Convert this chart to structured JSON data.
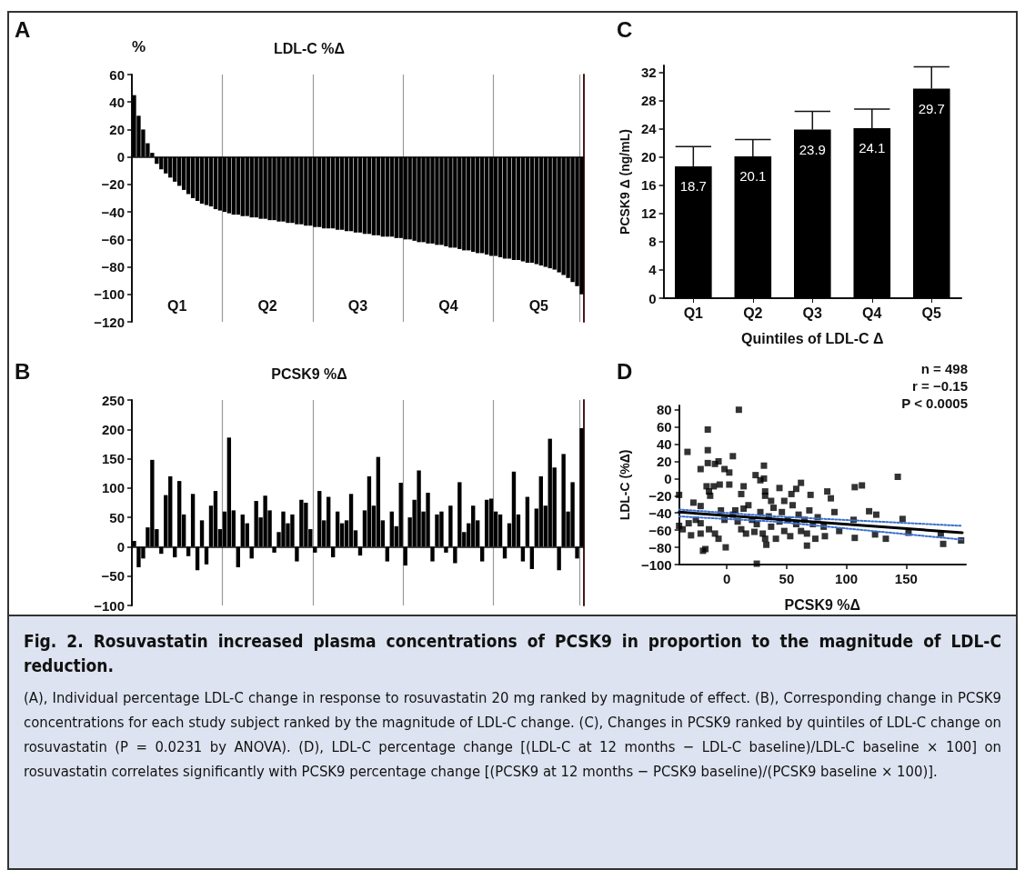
{
  "chart_data": [
    {
      "type": "bar",
      "title": "LDL-C %Δ",
      "ylabel": "%",
      "color": "#000000",
      "grid": "x",
      "ylim": [
        -120,
        60
      ],
      "yticks": [
        -120,
        -100,
        -80,
        -60,
        -40,
        -20,
        0,
        20,
        40,
        60
      ],
      "annotations": [
        "A",
        "Q1",
        "Q2",
        "Q3",
        "Q4",
        "Q5"
      ],
      "categories": [
        null,
        null,
        null,
        null,
        null,
        null,
        null,
        null,
        null,
        null,
        null,
        null,
        null,
        null,
        null,
        null,
        null,
        null,
        null,
        null,
        null,
        null,
        null,
        null,
        null,
        null,
        null,
        null,
        null,
        null,
        null,
        null,
        null,
        null,
        null,
        null,
        null,
        null,
        null,
        null,
        null,
        null,
        null,
        null,
        null,
        null,
        null,
        null,
        null,
        null,
        null,
        null,
        null,
        null,
        null,
        null,
        null,
        null,
        null,
        null,
        null,
        null,
        null,
        null,
        null,
        null,
        null,
        null,
        null,
        null,
        null,
        null,
        null,
        null,
        null,
        null,
        null,
        null,
        null,
        null,
        null,
        null,
        null,
        null,
        null,
        null,
        null,
        null,
        null,
        null,
        null,
        null,
        null,
        null,
        null,
        null,
        null,
        null,
        null,
        null
      ],
      "values": [
        45,
        30,
        20,
        10,
        3,
        -5,
        -9,
        -12,
        -15,
        -18,
        -21,
        -24,
        -27,
        -30,
        -32,
        -34,
        -35,
        -36,
        -38,
        -39,
        -40,
        -41,
        -42,
        -42,
        -43,
        -43,
        -44,
        -44,
        -45,
        -45,
        -46,
        -46,
        -47,
        -47,
        -48,
        -48,
        -49,
        -49,
        -50,
        -50,
        -51,
        -51,
        -52,
        -52,
        -52,
        -53,
        -53,
        -54,
        -54,
        -55,
        -55,
        -56,
        -56,
        -57,
        -57,
        -58,
        -58,
        -58,
        -59,
        -59,
        -60,
        -60,
        -61,
        -62,
        -62,
        -63,
        -63,
        -64,
        -64,
        -65,
        -66,
        -66,
        -67,
        -68,
        -68,
        -69,
        -70,
        -70,
        -71,
        -72,
        -72,
        -73,
        -74,
        -74,
        -75,
        -75,
        -76,
        -77,
        -77,
        -78,
        -79,
        -80,
        -81,
        -82,
        -84,
        -86,
        -88,
        -91,
        -94,
        -100
      ]
    },
    {
      "type": "bar",
      "title": "PCSK9 %Δ",
      "color": "#000000",
      "grid": "x",
      "ylim": [
        -100,
        250
      ],
      "yticks": [
        -100,
        -50,
        0,
        50,
        100,
        150,
        200,
        250
      ],
      "annotations": [
        "B"
      ],
      "categories": [
        null,
        null,
        null,
        null,
        null,
        null,
        null,
        null,
        null,
        null,
        null,
        null,
        null,
        null,
        null,
        null,
        null,
        null,
        null,
        null,
        null,
        null,
        null,
        null,
        null,
        null,
        null,
        null,
        null,
        null,
        null,
        null,
        null,
        null,
        null,
        null,
        null,
        null,
        null,
        null,
        null,
        null,
        null,
        null,
        null,
        null,
        null,
        null,
        null,
        null,
        null,
        null,
        null,
        null,
        null,
        null,
        null,
        null,
        null,
        null,
        null,
        null,
        null,
        null,
        null,
        null,
        null,
        null,
        null,
        null,
        null,
        null,
        null,
        null,
        null,
        null,
        null,
        null,
        null,
        null,
        null,
        null,
        null,
        null,
        null,
        null,
        null,
        null,
        null,
        null,
        null,
        null,
        null,
        null,
        null,
        null,
        null,
        null,
        null,
        null
      ],
      "values": [
        10,
        -35,
        -20,
        33,
        148,
        30,
        -12,
        88,
        120,
        -18,
        112,
        55,
        -16,
        90,
        -40,
        45,
        -30,
        70,
        95,
        30,
        60,
        186,
        62,
        -35,
        55,
        40,
        -20,
        78,
        50,
        87,
        62,
        -10,
        25,
        60,
        40,
        55,
        -25,
        80,
        75,
        30,
        -10,
        95,
        45,
        85,
        -18,
        60,
        40,
        45,
        90,
        28,
        -15,
        62,
        120,
        70,
        153,
        45,
        -25,
        60,
        35,
        109,
        -32,
        50,
        80,
        130,
        60,
        92,
        -25,
        55,
        60,
        -10,
        70,
        -28,
        110,
        25,
        40,
        70,
        45,
        -25,
        80,
        82,
        60,
        55,
        -20,
        40,
        128,
        55,
        -25,
        85,
        -38,
        65,
        120,
        70,
        184,
        135,
        -40,
        158,
        60,
        110,
        -20,
        202
      ]
    },
    {
      "type": "bar",
      "xlabel": "Quintiles of LDL-C Δ",
      "ylabel": "PCSK9 Δ (ng/mL)",
      "color": "#000000",
      "ylim": [
        0,
        33
      ],
      "yticks": [
        0,
        4,
        8,
        12,
        16,
        20,
        24,
        28,
        32
      ],
      "annotations": [
        "C"
      ],
      "data_labels": true,
      "categories": [
        "Q1",
        "Q2",
        "Q3",
        "Q4",
        "Q5"
      ],
      "values": [
        18.7,
        20.1,
        23.9,
        24.1,
        29.7
      ],
      "errors": [
        [
          18.7,
          21.5
        ],
        [
          20.1,
          22.5
        ],
        [
          23.9,
          26.5
        ],
        [
          24.1,
          26.8
        ],
        [
          29.7,
          32.8
        ]
      ]
    },
    {
      "type": "scatter",
      "xlabel": "PCSK9 %Δ",
      "ylabel": "LDL-C (%Δ)",
      "xlim": [
        -40,
        200
      ],
      "xticks": [
        0,
        50,
        100,
        150
      ],
      "ylim": [
        -100,
        85
      ],
      "yticks": [
        -100,
        -80,
        -60,
        -40,
        -20,
        0,
        20,
        40,
        60,
        80
      ],
      "line_style": "solid",
      "annotations": [
        "D",
        "n = 498",
        "r = −0.15",
        "P < 0.0005"
      ],
      "series": [
        {
          "type": "scatter",
          "marker": "square",
          "color": "#000000",
          "x": [
            10,
            -40,
            -33,
            -16,
            -16,
            -16,
            -22,
            -10,
            -7,
            5,
            -2,
            2,
            31,
            24,
            28,
            31,
            143,
            -6,
            2,
            -17,
            -11,
            14,
            -15,
            -14,
            62,
            44,
            107,
            113,
            84,
            87,
            58,
            54,
            12,
            -28,
            -22,
            32,
            32,
            70,
            119,
            125,
            147,
            152,
            179,
            181,
            196,
            133,
            124,
            107,
            106,
            82,
            67,
            33,
            25,
            -1,
            -20,
            -18,
            -30,
            -22,
            -40,
            -37,
            -32,
            -26,
            -22,
            -15,
            -10,
            -7,
            5,
            9,
            14,
            18,
            21,
            23,
            25,
            28,
            30,
            35,
            37,
            39,
            41,
            44,
            46,
            48,
            51,
            53,
            55,
            58,
            60,
            62,
            65,
            67,
            69,
            72,
            74,
            76,
            81,
            90,
            94,
            7,
            12,
            -2,
            -5,
            16,
            32,
            37,
            48
          ],
          "values": [
            80,
            -19,
            31,
            57,
            33,
            18,
            11,
            17,
            20,
            26,
            11,
            7,
            15,
            4,
            -2,
            0,
            2,
            -7,
            -7,
            -9,
            -9,
            -9,
            -15,
            -20,
            -5,
            -11,
            -10,
            -8,
            -15,
            -23,
            -12,
            -18,
            -18,
            -28,
            -32,
            -15,
            -20,
            -19,
            -38,
            -42,
            -47,
            -63,
            -64,
            -76,
            -72,
            -70,
            -65,
            -69,
            -48,
            -67,
            -78,
            -77,
            -99,
            -80,
            -84,
            -82,
            -66,
            -64,
            -55,
            -59,
            -52,
            -48,
            -52,
            -59,
            -64,
            -70,
            -42,
            -50,
            -35,
            -31,
            -48,
            -62,
            -53,
            -39,
            -64,
            -44,
            -56,
            -34,
            -70,
            -50,
            -39,
            -61,
            -48,
            -67,
            -31,
            -53,
            -42,
            -61,
            -48,
            -64,
            -37,
            -53,
            -70,
            -45,
            -56,
            -39,
            -61,
            -37,
            -59,
            -48,
            -37,
            -64,
            -70,
            -26,
            -26
          ]
        },
        {
          "type": "line",
          "color": "#000000",
          "x": [
            -40,
            197
          ],
          "values": [
            -39,
            -63
          ]
        },
        {
          "type": "line",
          "color": "#3a6fd0",
          "line_style": "dotted",
          "x": [
            -40,
            40,
            197
          ],
          "values": [
            -36,
            -44,
            -55
          ]
        },
        {
          "type": "line",
          "color": "#3a6fd0",
          "line_style": "dotted",
          "x": [
            -40,
            40,
            197
          ],
          "values": [
            -44,
            -50,
            -71
          ]
        }
      ]
    },
    {
      "type": "other",
      "title": "Fig. 2. Rosuvastatin increased plasma concentrations of PCSK9 in proportion to the magnitude of LDL-C reduction.",
      "annotations": [
        "(A), Individual percentage LDL-C change in response to rosuvastatin 20 mg ranked by magnitude of effect. (B), Corresponding change in PCSK9 concentrations for each study subject ranked by the magnitude of LDL-C change. (C), Changes in PCSK9 ranked by quintiles of LDL-C change on rosuvastatin (P = 0.0231 by ANOVA). (D), LDL-C percentage change [(LDL-C at 12 months − LDL-C baseline)/LDL-C baseline × 100] on rosuvastatin correlates significantly with PCSK9 percentage change [(PCSK9 at 12 months − PCSK9 baseline)/(PCSK9 baseline × 100)]."
      ]
    }
  ]
}
